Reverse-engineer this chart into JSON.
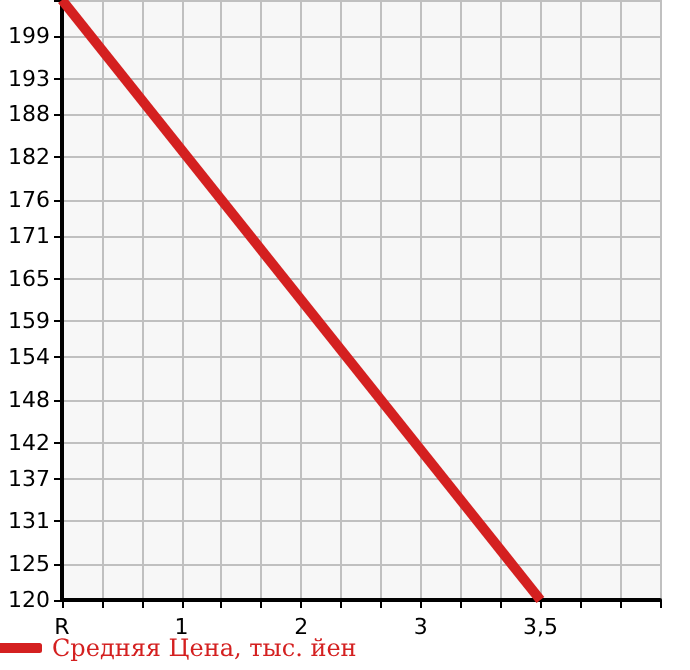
{
  "chart_data": {
    "type": "line",
    "categories": [
      "R",
      null,
      null,
      "1",
      null,
      null,
      "2",
      null,
      null,
      "3",
      null,
      null,
      "3,5",
      null,
      null,
      null
    ],
    "series": [
      {
        "name": "Средняя Цена, тыс. йен",
        "color": "#d42020",
        "values": [
          204,
          null,
          null,
          null,
          null,
          null,
          null,
          null,
          null,
          null,
          null,
          null,
          120,
          null,
          null,
          null
        ]
      }
    ],
    "ylim": [
      120,
      204
    ],
    "yticks": [
      120,
      125,
      131,
      137,
      142,
      148,
      154,
      159,
      165,
      171,
      176,
      182,
      188,
      193,
      199,
      {
        "value": 204,
        "label": null
      }
    ],
    "grid": true,
    "legend": "bottom left",
    "marker": "none",
    "line_style": "solid"
  }
}
